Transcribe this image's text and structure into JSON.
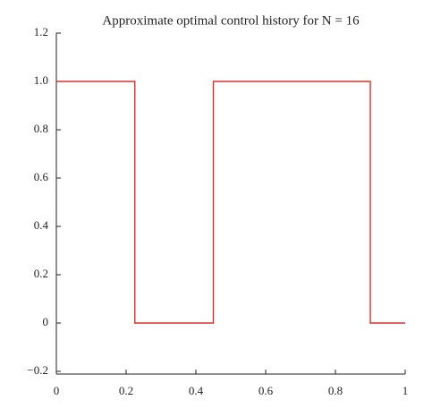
{
  "chart_data": {
    "type": "line",
    "title": "Approximate optimal control history for N = 16",
    "x": [
      0,
      0.225,
      0.225,
      0.45,
      0.45,
      0.9,
      0.9,
      1
    ],
    "series": [
      {
        "color": "#d9302a",
        "values": [
          1,
          1,
          0,
          0,
          1,
          1,
          0,
          0
        ]
      }
    ],
    "xlim": [
      0,
      1
    ],
    "xticks": [
      0,
      0.2,
      0.4,
      0.6,
      0.8,
      1
    ],
    "ylim": [
      -0.2,
      1.2
    ],
    "yticks": [
      {
        "value": -0.2,
        "label": "−0.2"
      },
      0,
      0.2,
      0.4,
      0.6,
      0.8,
      {
        "value": 1.0,
        "label": "1.0"
      },
      1.2
    ],
    "grid": false
  }
}
